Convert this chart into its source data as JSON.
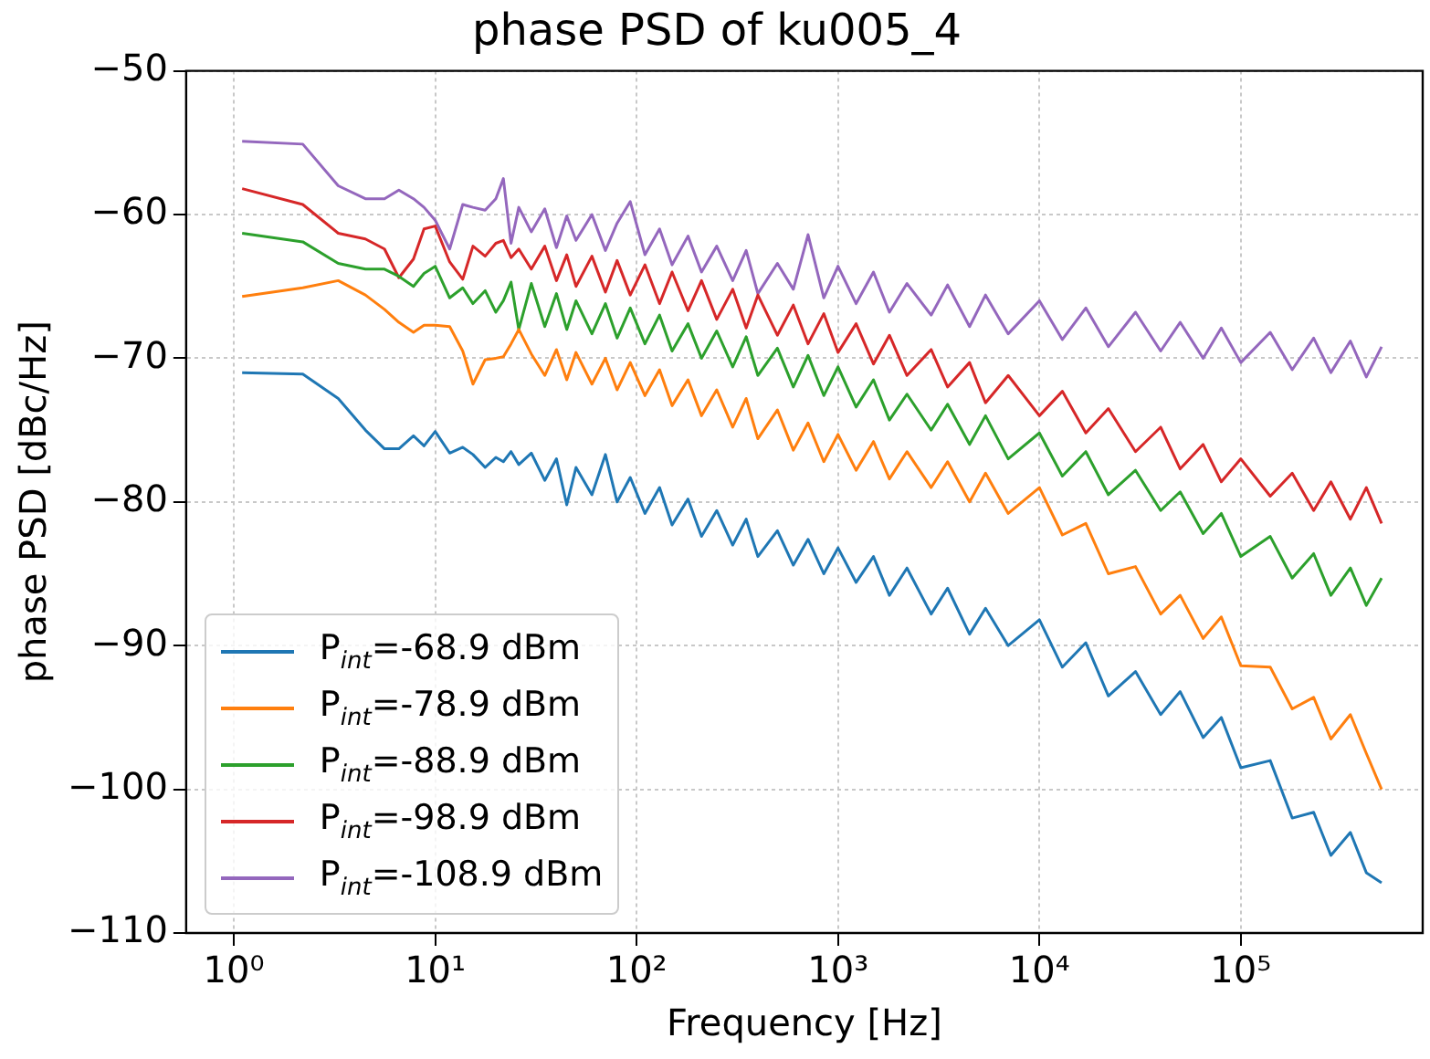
{
  "chart_data": {
    "type": "line",
    "title": "phase PSD of ku005_4",
    "xlabel": "Frequency [Hz]",
    "ylabel": "phase PSD [dBc/Hz]",
    "log": "x",
    "grid": true,
    "legend": "bottom left",
    "marker": "none",
    "line_style": "solid",
    "xlim": [
      0.58,
      800000
    ],
    "ylim": [
      -110,
      -50
    ],
    "xticks": [
      {
        "value": 1,
        "label": "10⁰"
      },
      {
        "value": 10,
        "label": "10¹"
      },
      {
        "value": 100,
        "label": "10²"
      },
      {
        "value": 1000,
        "label": "10³"
      },
      {
        "value": 10000,
        "label": "10⁴"
      },
      {
        "value": 100000,
        "label": "10⁵"
      }
    ],
    "yticks": [
      {
        "value": -110,
        "label": "−110"
      },
      {
        "value": -100,
        "label": "−100"
      },
      {
        "value": -90,
        "label": "−90"
      },
      {
        "value": -80,
        "label": "−80"
      },
      {
        "value": -70,
        "label": "−70"
      },
      {
        "value": -60,
        "label": "−60"
      },
      {
        "value": -50,
        "label": "−50"
      }
    ],
    "x": [
      1.1,
      2.2,
      3.3,
      4.5,
      5.6,
      6.6,
      7.8,
      8.8,
      10,
      11.8,
      13.7,
      15.4,
      17.7,
      20,
      21.8,
      23.8,
      26,
      30,
      35,
      40,
      45,
      50,
      60,
      70,
      80,
      93,
      110,
      130,
      150,
      180,
      210,
      250,
      300,
      350,
      400,
      500,
      600,
      710,
      850,
      1000,
      1230,
      1500,
      1800,
      2200,
      2900,
      3500,
      4500,
      5400,
      7000,
      10000,
      13000,
      17000,
      22000,
      30000,
      40000,
      50000,
      65000,
      80000,
      100000,
      140000,
      180000,
      230000,
      280000,
      350000,
      420000,
      500000
    ],
    "series": [
      {
        "name": "P$_{int}$=-68.9 dBm",
        "color": "#1f77b4",
        "values": [
          -71.0,
          -71.1,
          -72.8,
          -75.0,
          -76.3,
          -76.3,
          -75.4,
          -76.1,
          -75.1,
          -76.6,
          -76.2,
          -76.7,
          -77.6,
          -76.9,
          -77.2,
          -76.5,
          -77.4,
          -76.6,
          -78.5,
          -77.0,
          -80.2,
          -77.6,
          -79.5,
          -76.7,
          -80.0,
          -78.3,
          -80.8,
          -79.0,
          -81.6,
          -79.8,
          -82.4,
          -80.6,
          -83.0,
          -81.2,
          -83.8,
          -82.0,
          -84.4,
          -82.6,
          -85.0,
          -83.2,
          -85.6,
          -83.8,
          -86.5,
          -84.6,
          -87.8,
          -86.0,
          -89.2,
          -87.4,
          -90.0,
          -88.2,
          -91.5,
          -89.8,
          -93.5,
          -91.8,
          -94.8,
          -93.2,
          -96.4,
          -95.0,
          -98.5,
          -98.0,
          -102.0,
          -101.6,
          -104.6,
          -103.0,
          -105.8,
          -106.5
        ]
      },
      {
        "name": "P$_{int}$=-78.9 dBm",
        "color": "#ff7f0e",
        "values": [
          -65.7,
          -65.1,
          -64.6,
          -65.6,
          -66.6,
          -67.5,
          -68.2,
          -67.7,
          -67.7,
          -67.8,
          -69.5,
          -71.8,
          -70.1,
          -70.0,
          -69.9,
          -69.0,
          -68.0,
          -69.7,
          -71.2,
          -69.4,
          -71.5,
          -69.6,
          -71.8,
          -70.0,
          -72.2,
          -70.3,
          -72.6,
          -70.8,
          -73.3,
          -71.5,
          -74.0,
          -72.2,
          -74.8,
          -72.8,
          -75.6,
          -73.6,
          -76.4,
          -74.5,
          -77.2,
          -75.3,
          -77.8,
          -75.8,
          -78.4,
          -76.5,
          -79.0,
          -77.2,
          -80.0,
          -78.0,
          -80.8,
          -79.0,
          -82.3,
          -81.5,
          -85.0,
          -84.5,
          -87.8,
          -86.5,
          -89.5,
          -88.0,
          -91.4,
          -91.5,
          -94.4,
          -93.6,
          -96.5,
          -94.8,
          -97.5,
          -100.0
        ]
      },
      {
        "name": "P$_{int}$=-88.9 dBm",
        "color": "#2ca02c",
        "values": [
          -61.3,
          -61.9,
          -63.4,
          -63.8,
          -63.8,
          -64.3,
          -65.0,
          -64.1,
          -63.6,
          -65.8,
          -65.1,
          -66.2,
          -65.3,
          -66.8,
          -66.0,
          -64.7,
          -68.0,
          -64.8,
          -67.8,
          -65.5,
          -68.0,
          -66.0,
          -68.3,
          -66.2,
          -68.6,
          -66.5,
          -69.0,
          -67.0,
          -69.5,
          -67.6,
          -70.0,
          -68.1,
          -70.6,
          -68.5,
          -71.2,
          -69.3,
          -72.0,
          -69.8,
          -72.6,
          -70.6,
          -73.4,
          -71.5,
          -74.3,
          -72.5,
          -75.0,
          -73.2,
          -76.0,
          -74.0,
          -77.0,
          -75.2,
          -78.2,
          -76.5,
          -79.5,
          -77.8,
          -80.6,
          -79.3,
          -82.2,
          -80.8,
          -83.8,
          -82.4,
          -85.3,
          -83.6,
          -86.5,
          -84.6,
          -87.2,
          -85.3
        ]
      },
      {
        "name": "P$_{int}$=-98.9 dBm",
        "color": "#d62728",
        "values": [
          -58.2,
          -59.3,
          -61.3,
          -61.7,
          -62.4,
          -64.4,
          -63.1,
          -61.0,
          -60.8,
          -63.3,
          -64.5,
          -62.2,
          -62.9,
          -62.0,
          -61.8,
          -63.0,
          -62.4,
          -63.8,
          -62.2,
          -64.6,
          -62.8,
          -65.0,
          -62.9,
          -65.4,
          -63.2,
          -65.6,
          -63.5,
          -66.2,
          -64.0,
          -66.7,
          -64.6,
          -67.3,
          -65.2,
          -67.9,
          -65.6,
          -68.4,
          -66.3,
          -69.0,
          -66.9,
          -69.6,
          -67.6,
          -70.4,
          -68.4,
          -71.2,
          -69.4,
          -72.0,
          -70.3,
          -73.1,
          -71.2,
          -74.0,
          -72.3,
          -75.2,
          -73.5,
          -76.5,
          -74.8,
          -77.7,
          -76.0,
          -78.6,
          -77.0,
          -79.6,
          -78.0,
          -80.6,
          -78.6,
          -81.2,
          -79.0,
          -81.5
        ]
      },
      {
        "name": "P$_{int}$=-108.9 dBm",
        "color": "#9467bd",
        "values": [
          -54.9,
          -55.1,
          -58.0,
          -58.9,
          -58.9,
          -58.3,
          -58.9,
          -59.5,
          -60.4,
          -62.4,
          -59.3,
          -59.5,
          -59.7,
          -58.9,
          -57.5,
          -62.0,
          -59.5,
          -61.2,
          -59.6,
          -62.3,
          -60.1,
          -61.8,
          -60.0,
          -62.5,
          -60.6,
          -59.1,
          -62.8,
          -61.0,
          -63.5,
          -61.5,
          -64.0,
          -62.2,
          -64.6,
          -62.5,
          -65.5,
          -63.4,
          -65.2,
          -61.4,
          -65.8,
          -63.6,
          -66.2,
          -64.0,
          -66.8,
          -64.8,
          -67.0,
          -64.9,
          -67.8,
          -65.6,
          -68.3,
          -66.0,
          -68.7,
          -66.5,
          -69.2,
          -66.8,
          -69.5,
          -67.5,
          -70.0,
          -67.9,
          -70.3,
          -68.2,
          -70.8,
          -68.6,
          -71.0,
          -68.8,
          -71.3,
          -69.2
        ]
      }
    ]
  }
}
